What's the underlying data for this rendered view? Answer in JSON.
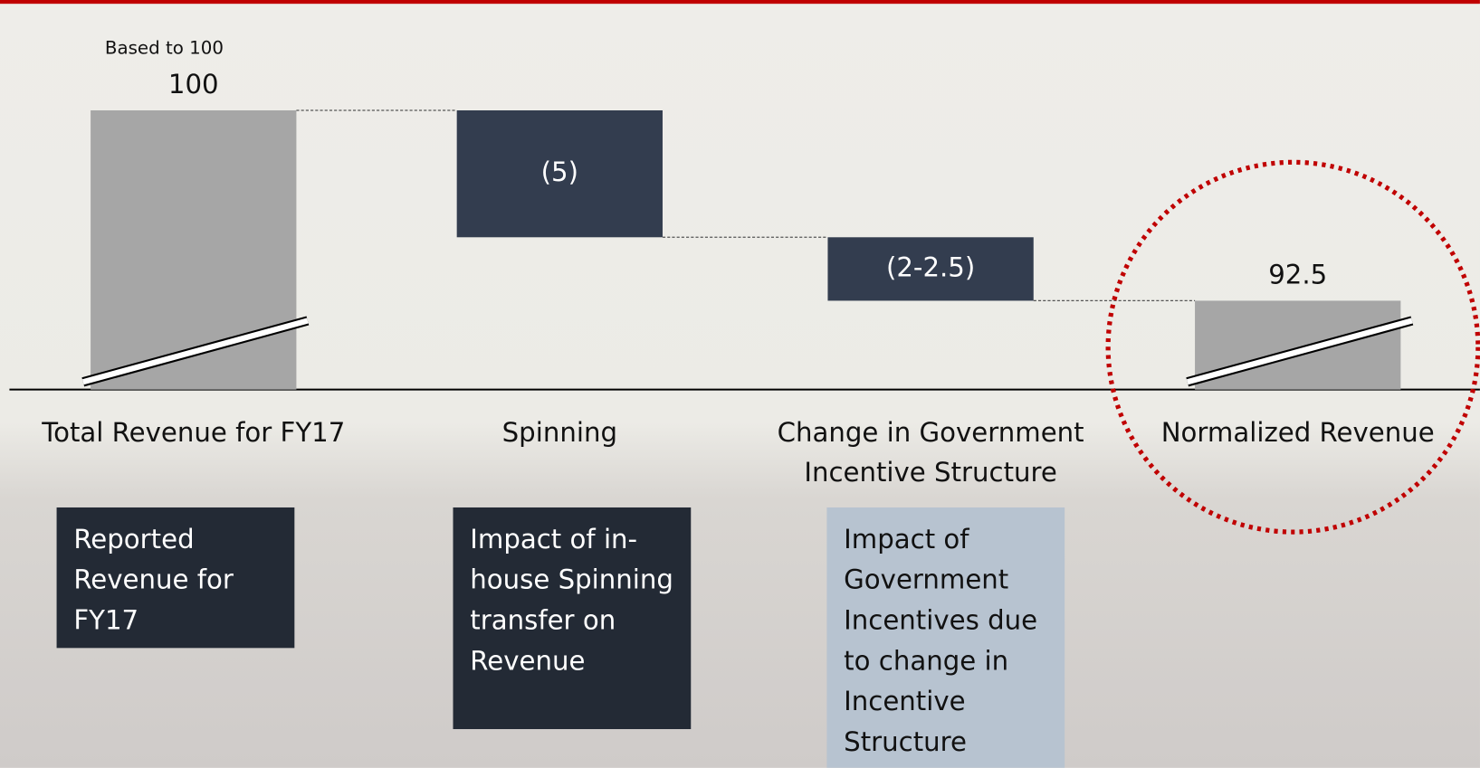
{
  "chart_data": {
    "type": "waterfall",
    "note": "Based to 100",
    "categories": [
      "Total Revenue for FY17",
      "Spinning",
      "Change in Government Incentive Structure",
      "Normalized Revenue"
    ],
    "values": [
      100,
      -5,
      -2.5,
      92.5
    ],
    "value_labels": [
      "100",
      "(5)",
      "(2-2.5)",
      "92.5"
    ],
    "total_color": "#a6a6a6",
    "change_color": "#333d4f",
    "ylim": [
      89,
      100
    ]
  },
  "descriptions": [
    {
      "text": "Reported Revenue for FY17",
      "color": "#232a35"
    },
    {
      "text": "Impact of in-house Spinning transfer on Revenue",
      "color": "#232a35"
    },
    {
      "text": "Impact of Government Incentives due to change in Incentive Structure",
      "color": "#b7c3d0"
    }
  ]
}
